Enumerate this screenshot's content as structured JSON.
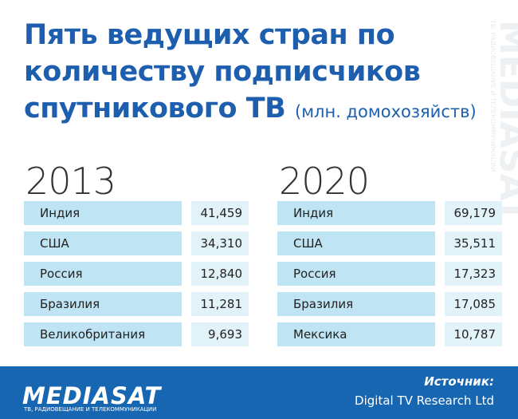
{
  "header": {
    "title_lines": [
      "Пять ведущих стран по",
      "количеству подписчиков",
      "спутникового ТВ"
    ],
    "unit": "(млн. домохозяйств)"
  },
  "tables": [
    {
      "year": "2013",
      "rows": [
        [
          "Индия",
          "41,459"
        ],
        [
          "США",
          "34,310"
        ],
        [
          "Россия",
          "12,840"
        ],
        [
          "Бразилия",
          "11,281"
        ],
        [
          "Великобритания",
          "9,693"
        ]
      ]
    },
    {
      "year": "2020",
      "rows": [
        [
          "Индия",
          "69,179"
        ],
        [
          "США",
          "35,511"
        ],
        [
          "Россия",
          "17,323"
        ],
        [
          "Бразилия",
          "17,085"
        ],
        [
          "Мексика",
          "10,787"
        ]
      ]
    }
  ],
  "footer": {
    "logo": "MEDIASAT",
    "logo_tagline": "ТВ, РАДИОВЕЩАНИЕ И ТЕЛЕКОММУНИКАЦИИ",
    "source_label": "Источник:",
    "source": "Digital TV Research Ltd"
  }
}
